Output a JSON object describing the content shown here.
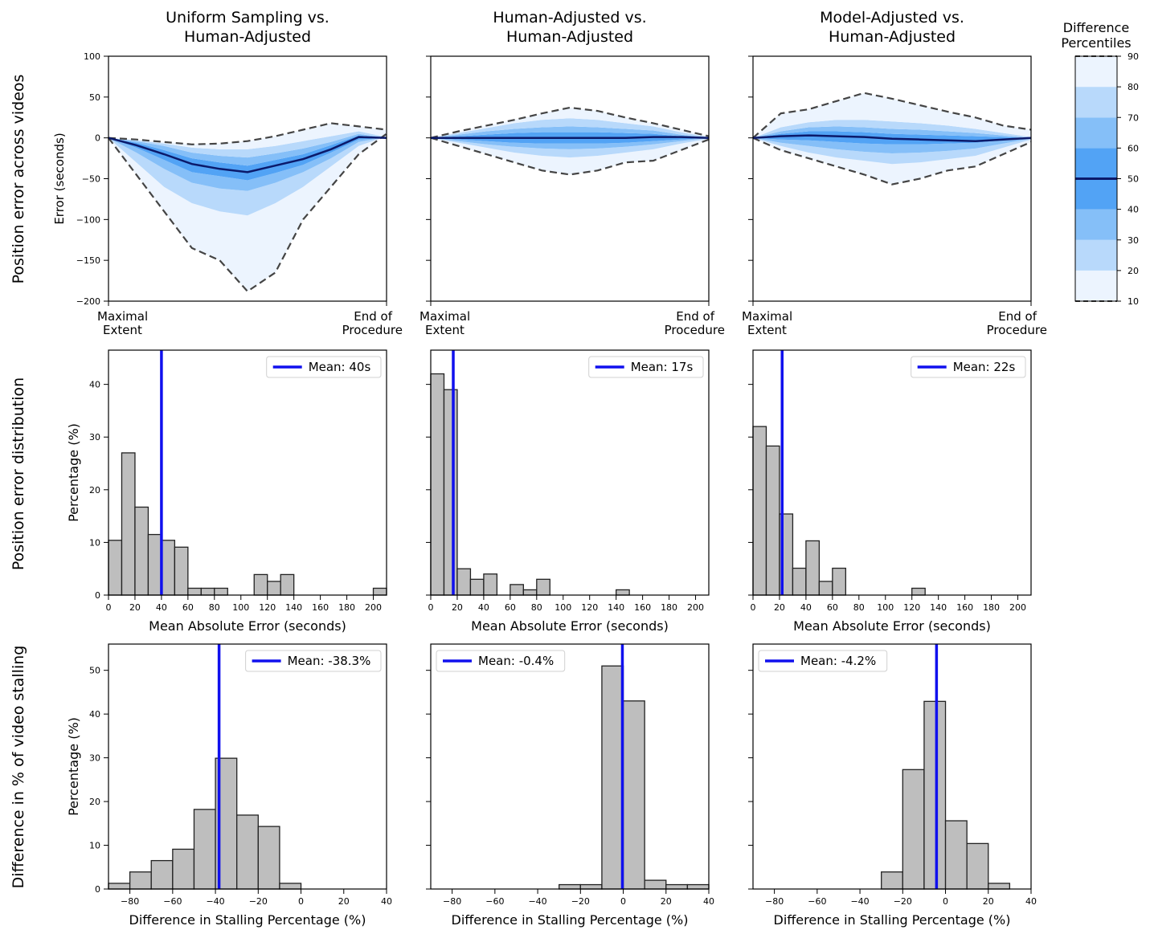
{
  "columns": [
    {
      "title_line1": "Uniform Sampling vs.",
      "title_line2": "Human-Adjusted"
    },
    {
      "title_line1": "Human-Adjusted vs.",
      "title_line2": "Human-Adjusted"
    },
    {
      "title_line1": "Model-Adjusted vs.",
      "title_line2": "Human-Adjusted"
    }
  ],
  "rows": [
    {
      "label": "Position error across videos"
    },
    {
      "label": "Position error distribution"
    },
    {
      "label": "Difference in % of video stalling"
    }
  ],
  "colorbar": {
    "title_line1": "Difference",
    "title_line2": "Percentiles",
    "ticks": [
      10,
      20,
      30,
      40,
      50,
      60,
      70,
      80,
      90
    ],
    "band_colors": [
      "#ecf4fe",
      "#b8d9fb",
      "#85bff8",
      "#52a3f5",
      "#52a3f5",
      "#85bff8",
      "#b8d9fb",
      "#ecf4fe"
    ],
    "median_color": "#0b1a6b"
  },
  "colors": {
    "bar_fill": "#bebebe",
    "bar_edge": "#222222",
    "mean_line": "#1010ee",
    "dash": "#444444",
    "median": "#0b1a6b"
  },
  "chart_data": [
    {
      "type": "area",
      "panel": "row1-col1",
      "ylabel": "Error (seconds)",
      "ylim": [
        -200,
        100
      ],
      "yticks": [
        -200,
        -150,
        -100,
        -50,
        0,
        50,
        100
      ],
      "xtick_labels": [
        [
          "Maximal",
          "Extent"
        ],
        [
          "End of",
          "Procedure"
        ]
      ],
      "x": [
        0,
        0.1,
        0.2,
        0.3,
        0.4,
        0.5,
        0.6,
        0.7,
        0.8,
        0.9,
        1.0
      ],
      "p10": [
        0,
        -45,
        -90,
        -135,
        -150,
        -188,
        -165,
        -100,
        -60,
        -20,
        5
      ],
      "p20": [
        0,
        -30,
        -60,
        -80,
        -90,
        -95,
        -80,
        -60,
        -35,
        -10,
        2
      ],
      "p30": [
        0,
        -18,
        -38,
        -55,
        -62,
        -65,
        -55,
        -42,
        -25,
        -5,
        1
      ],
      "p40": [
        0,
        -12,
        -27,
        -42,
        -47,
        -52,
        -43,
        -33,
        -18,
        -2,
        0
      ],
      "p50": [
        0,
        -9,
        -20,
        -32,
        -38,
        -42,
        -34,
        -26,
        -14,
        1,
        0
      ],
      "p60": [
        0,
        -6,
        -15,
        -25,
        -30,
        -34,
        -27,
        -20,
        -9,
        3,
        0
      ],
      "p70": [
        0,
        -4,
        -10,
        -18,
        -22,
        -24,
        -19,
        -13,
        -5,
        5,
        0
      ],
      "p80": [
        0,
        -3,
        -7,
        -12,
        -14,
        -14,
        -10,
        -4,
        2,
        8,
        1
      ],
      "p90": [
        0,
        -2,
        -5,
        -8,
        -7,
        -4,
        2,
        10,
        18,
        14,
        10
      ]
    },
    {
      "type": "area",
      "panel": "row1-col2",
      "ylim": [
        -200,
        100
      ],
      "xtick_labels": [
        [
          "Maximal",
          "Extent"
        ],
        [
          "End of",
          "Procedure"
        ]
      ],
      "x": [
        0,
        0.1,
        0.2,
        0.3,
        0.4,
        0.5,
        0.6,
        0.7,
        0.8,
        0.9,
        1.0
      ],
      "p10": [
        0,
        -10,
        -20,
        -30,
        -40,
        -45,
        -40,
        -30,
        -28,
        -15,
        -2
      ],
      "p20": [
        0,
        -6,
        -12,
        -18,
        -22,
        -24,
        -22,
        -18,
        -14,
        -7,
        -1
      ],
      "p30": [
        0,
        -4,
        -8,
        -11,
        -13,
        -14,
        -13,
        -11,
        -8,
        -4,
        0
      ],
      "p40": [
        0,
        -2,
        -4,
        -6,
        -7,
        -7,
        -7,
        -6,
        -4,
        -2,
        0
      ],
      "p50": [
        0,
        0,
        0,
        0,
        0,
        0,
        0,
        0,
        1,
        1,
        0
      ],
      "p60": [
        0,
        2,
        4,
        6,
        7,
        7,
        7,
        6,
        5,
        2,
        0
      ],
      "p70": [
        0,
        4,
        8,
        11,
        13,
        14,
        13,
        11,
        9,
        4,
        0
      ],
      "p80": [
        0,
        6,
        12,
        18,
        22,
        24,
        22,
        18,
        14,
        7,
        1
      ],
      "p90": [
        0,
        8,
        15,
        22,
        30,
        37,
        33,
        25,
        18,
        10,
        2
      ]
    },
    {
      "type": "area",
      "panel": "row1-col3",
      "ylim": [
        -200,
        100
      ],
      "xtick_labels": [
        [
          "Maximal",
          "Extent"
        ],
        [
          "End of",
          "Procedure"
        ]
      ],
      "x": [
        0,
        0.1,
        0.2,
        0.3,
        0.4,
        0.5,
        0.6,
        0.7,
        0.8,
        0.9,
        1.0
      ],
      "p10": [
        0,
        -15,
        -25,
        -35,
        -45,
        -57,
        -50,
        -40,
        -35,
        -20,
        -5
      ],
      "p20": [
        0,
        -10,
        -18,
        -24,
        -28,
        -32,
        -30,
        -26,
        -22,
        -12,
        -2
      ],
      "p30": [
        0,
        -6,
        -10,
        -14,
        -17,
        -19,
        -18,
        -16,
        -13,
        -7,
        -1
      ],
      "p40": [
        0,
        -2,
        -3,
        -5,
        -7,
        -8,
        -8,
        -7,
        -6,
        -3,
        0
      ],
      "p50": [
        0,
        2,
        3,
        2,
        1,
        -1,
        -2,
        -3,
        -4,
        -2,
        0
      ],
      "p60": [
        0,
        5,
        8,
        8,
        7,
        5,
        4,
        3,
        2,
        1,
        0
      ],
      "p70": [
        0,
        8,
        13,
        14,
        13,
        11,
        10,
        8,
        6,
        3,
        0
      ],
      "p80": [
        0,
        13,
        19,
        22,
        22,
        20,
        18,
        15,
        11,
        6,
        1
      ],
      "p90": [
        0,
        30,
        35,
        45,
        55,
        48,
        40,
        32,
        25,
        15,
        10
      ]
    },
    {
      "type": "bar",
      "panel": "row2-col1",
      "xlabel": "Mean Absolute Error (seconds)",
      "ylabel": "Percentage (%)",
      "xlim": [
        0,
        210
      ],
      "ylim": [
        0,
        46.5
      ],
      "xticks": [
        0,
        20,
        40,
        60,
        80,
        100,
        120,
        140,
        160,
        180,
        200
      ],
      "yticks": [
        0,
        10,
        20,
        30,
        40
      ],
      "bin_width": 10,
      "bin_starts": [
        0,
        10,
        20,
        30,
        40,
        50,
        60,
        70,
        80,
        90,
        100,
        110,
        120,
        130,
        140,
        150,
        160,
        170,
        180,
        190,
        200
      ],
      "values": [
        10.4,
        27.0,
        16.7,
        11.5,
        10.4,
        9.1,
        1.3,
        1.3,
        1.3,
        0,
        0,
        3.9,
        2.6,
        3.9,
        0,
        0,
        0,
        0,
        0,
        0,
        1.3
      ],
      "mean": 40,
      "legend": "Mean: 40s"
    },
    {
      "type": "bar",
      "panel": "row2-col2",
      "xlabel": "Mean Absolute Error (seconds)",
      "xlim": [
        0,
        210
      ],
      "ylim": [
        0,
        46.5
      ],
      "xticks": [
        0,
        20,
        40,
        60,
        80,
        100,
        120,
        140,
        160,
        180,
        200
      ],
      "bin_width": 10,
      "bin_starts": [
        0,
        10,
        20,
        30,
        40,
        50,
        60,
        70,
        80,
        90,
        100,
        110,
        120,
        130,
        140
      ],
      "values": [
        42.0,
        39.0,
        5.0,
        3.0,
        4.0,
        0,
        2.0,
        1.0,
        3.0,
        0,
        0,
        0,
        0,
        0,
        1.0
      ],
      "mean": 17,
      "legend": "Mean: 17s"
    },
    {
      "type": "bar",
      "panel": "row2-col3",
      "xlabel": "Mean Absolute Error (seconds)",
      "xlim": [
        0,
        210
      ],
      "ylim": [
        0,
        46.5
      ],
      "xticks": [
        0,
        20,
        40,
        60,
        80,
        100,
        120,
        140,
        160,
        180,
        200
      ],
      "bin_width": 10,
      "bin_starts": [
        0,
        10,
        20,
        30,
        40,
        50,
        60,
        70,
        80,
        90,
        100,
        110,
        120
      ],
      "values": [
        32.0,
        28.3,
        15.4,
        5.1,
        10.3,
        2.6,
        5.1,
        0,
        0,
        0,
        0,
        0,
        1.3
      ],
      "mean": 22,
      "legend": "Mean: 22s"
    },
    {
      "type": "bar",
      "panel": "row3-col1",
      "xlabel": "Difference in Stalling Percentage (%)",
      "ylabel": "Percentage (%)",
      "xlim": [
        -90,
        40
      ],
      "ylim": [
        0,
        56
      ],
      "xticks": [
        -80,
        -60,
        -40,
        -20,
        0,
        20,
        40
      ],
      "yticks": [
        0,
        10,
        20,
        30,
        40,
        50
      ],
      "bin_width": 10,
      "bin_starts": [
        -90,
        -80,
        -70,
        -60,
        -50,
        -40,
        -30,
        -20,
        -10
      ],
      "values": [
        1.3,
        3.9,
        6.5,
        9.1,
        18.2,
        29.9,
        16.9,
        14.3,
        1.3
      ],
      "mean": -38.3,
      "legend": "Mean: -38.3%"
    },
    {
      "type": "bar",
      "panel": "row3-col2",
      "xlabel": "Difference in Stalling Percentage (%)",
      "xlim": [
        -90,
        40
      ],
      "ylim": [
        0,
        56
      ],
      "xticks": [
        -80,
        -60,
        -40,
        -20,
        0,
        20,
        40
      ],
      "bin_width": 10,
      "bin_starts": [
        -30,
        -20,
        -10,
        0,
        10,
        20,
        30
      ],
      "values": [
        1.0,
        1.0,
        51.0,
        43.0,
        2.0,
        1.0,
        1.0
      ],
      "mean": -0.4,
      "legend": "Mean: -0.4%"
    },
    {
      "type": "bar",
      "panel": "row3-col3",
      "xlabel": "Difference in Stalling Percentage (%)",
      "xlim": [
        -90,
        40
      ],
      "ylim": [
        0,
        56
      ],
      "xticks": [
        -80,
        -60,
        -40,
        -20,
        0,
        20,
        40
      ],
      "bin_width": 10,
      "bin_starts": [
        -30,
        -20,
        -10,
        0,
        10,
        20
      ],
      "values": [
        3.9,
        27.3,
        42.9,
        15.6,
        10.4,
        1.3
      ],
      "mean": -4.2,
      "legend": "Mean: -4.2%"
    }
  ]
}
